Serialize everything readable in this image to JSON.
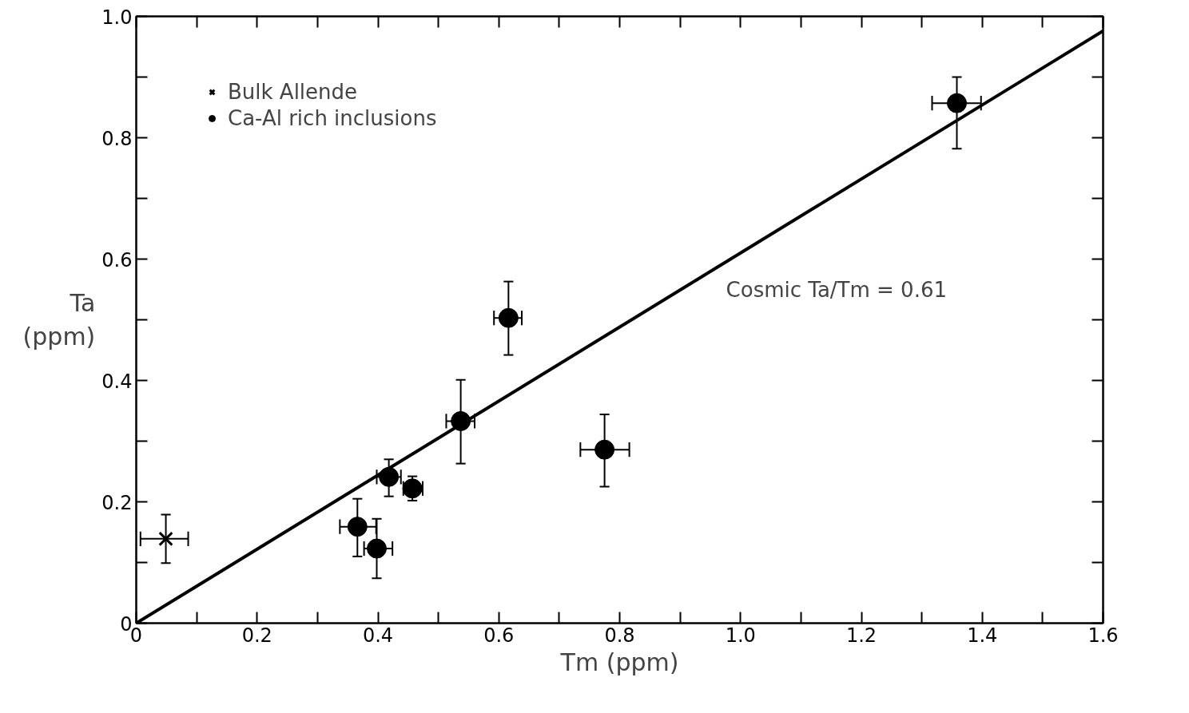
{
  "chart_data": {
    "type": "scatter",
    "xlabel": "Tm (ppm)",
    "ylabel": "Ta\n(ppm)",
    "xlim": [
      0,
      1.6
    ],
    "ylim": [
      0,
      1.0
    ],
    "xticks": [
      {
        "value": 0,
        "label": "0"
      },
      {
        "value": 0.1,
        "label": null
      },
      0.2,
      {
        "value": 0.3,
        "label": null
      },
      0.4,
      {
        "value": 0.5,
        "label": null
      },
      0.6,
      {
        "value": 0.7,
        "label": null
      },
      0.8,
      {
        "value": 0.9,
        "label": null
      },
      {
        "value": 1.0,
        "label": "1.0"
      },
      {
        "value": 1.1,
        "label": null
      },
      1.2,
      {
        "value": 1.3,
        "label": null
      },
      1.4,
      {
        "value": 1.5,
        "label": null
      },
      1.6
    ],
    "yticks": [
      {
        "value": 0,
        "label": "0"
      },
      {
        "value": 0.1,
        "label": null
      },
      0.2,
      {
        "value": 0.3,
        "label": null
      },
      0.4,
      {
        "value": 0.5,
        "label": null
      },
      0.6,
      {
        "value": 0.7,
        "label": null
      },
      0.8,
      {
        "value": 0.9,
        "label": null
      },
      {
        "value": 1.0,
        "label": "1.0"
      }
    ],
    "grid": false,
    "legend": "top left",
    "series": [
      {
        "name": "Bulk Allende",
        "color": "#000000",
        "marker": "cross",
        "x": [
          0.049
        ],
        "values": [
          0.139
        ],
        "errors": [
          [
            0.099,
            0.179
          ]
        ],
        "xerrors": [
          [
            0.007,
            0.086
          ]
        ]
      },
      {
        "name": "Ca-Al rich inclusions",
        "color": "#000000",
        "marker": "circle",
        "x": [
          0.366,
          0.398,
          0.418,
          0.457,
          0.537,
          0.616,
          0.775,
          1.358
        ],
        "values": [
          0.159,
          0.123,
          0.241,
          0.222,
          0.333,
          0.503,
          0.286,
          0.857
        ],
        "errors": [
          [
            0.11,
            0.205
          ],
          [
            0.074,
            0.172
          ],
          [
            0.209,
            0.27
          ],
          [
            0.202,
            0.242
          ],
          [
            0.263,
            0.401
          ],
          [
            0.442,
            0.563
          ],
          [
            0.225,
            0.344
          ],
          [
            0.782,
            0.9
          ]
        ],
        "xerrors": [
          [
            0.337,
            0.397
          ],
          [
            0.377,
            0.424
          ],
          [
            0.398,
            0.438
          ],
          [
            0.442,
            0.474
          ],
          [
            0.513,
            0.56
          ],
          [
            0.592,
            0.638
          ],
          [
            0.735,
            0.816
          ],
          [
            1.317,
            1.398
          ]
        ]
      },
      {
        "type": "line",
        "color": "#000000",
        "line_style": "solid",
        "marker": "none",
        "x": [
          0,
          1.6
        ],
        "values": [
          0,
          0.976
        ]
      }
    ],
    "annotations": [
      "Cosmic Ta/Tm = 0.61"
    ]
  }
}
